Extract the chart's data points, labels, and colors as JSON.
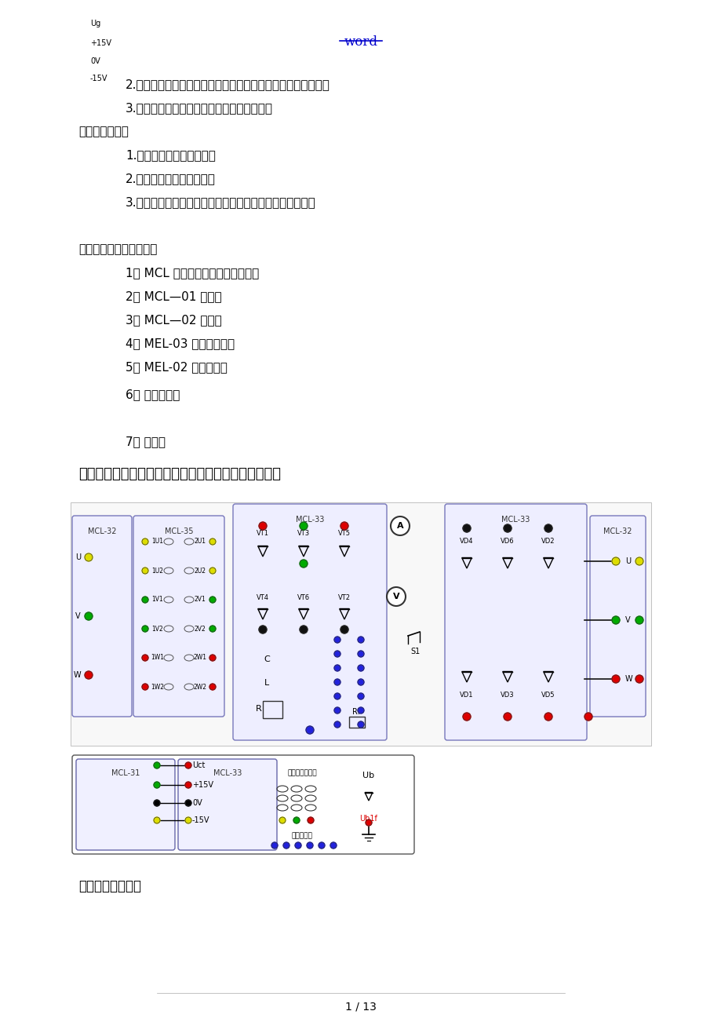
{
  "page_width": 9.2,
  "page_height": 13.02,
  "bg_color": "#ffffff",
  "header_text": "word",
  "header_color": "#0000cc",
  "header_underline": true,
  "body_text_color": "#000000",
  "title_section": "三相桥式全控整流与有源逆变电路实验线路图与接线图",
  "footer_text": "1 / 13",
  "lines": [
    {
      "indent": 2,
      "text": "2.　熟悉三相桥式全控整流与有源逆变电路的接线与工作原理。"
    },
    {
      "indent": 2,
      "text": "3.　了解集成触发器的调整方法与各点波形。"
    },
    {
      "indent": 1,
      "text": "二、实验内容："
    },
    {
      "indent": 2,
      "text": "1.　三相桥式全控整流电路"
    },
    {
      "indent": 2,
      "text": "2.　三相桥式有源逆变电路"
    },
    {
      "indent": 2,
      "text": "3.　观察整流或逆变状态下，模拟电路故障现象时的波形。"
    },
    {
      "indent": 1,
      "text": "三、实验主要仗器设备："
    },
    {
      "indent": 2,
      "text": "1． MCL 系列教学实验台主控制屏。"
    },
    {
      "indent": 2,
      "text": "2． MCL—01 组件。"
    },
    {
      "indent": 2,
      "text": "3． MCL—02 组件。"
    },
    {
      "indent": 2,
      "text": "4． MEL-03 可调电阵器。"
    },
    {
      "indent": 2,
      "text": "5． MEL-02 芋式变庋器"
    },
    {
      "indent": 2,
      "text": "6． 二踪示波器"
    },
    {
      "indent": 2,
      "text": "7． 万用表"
    }
  ]
}
